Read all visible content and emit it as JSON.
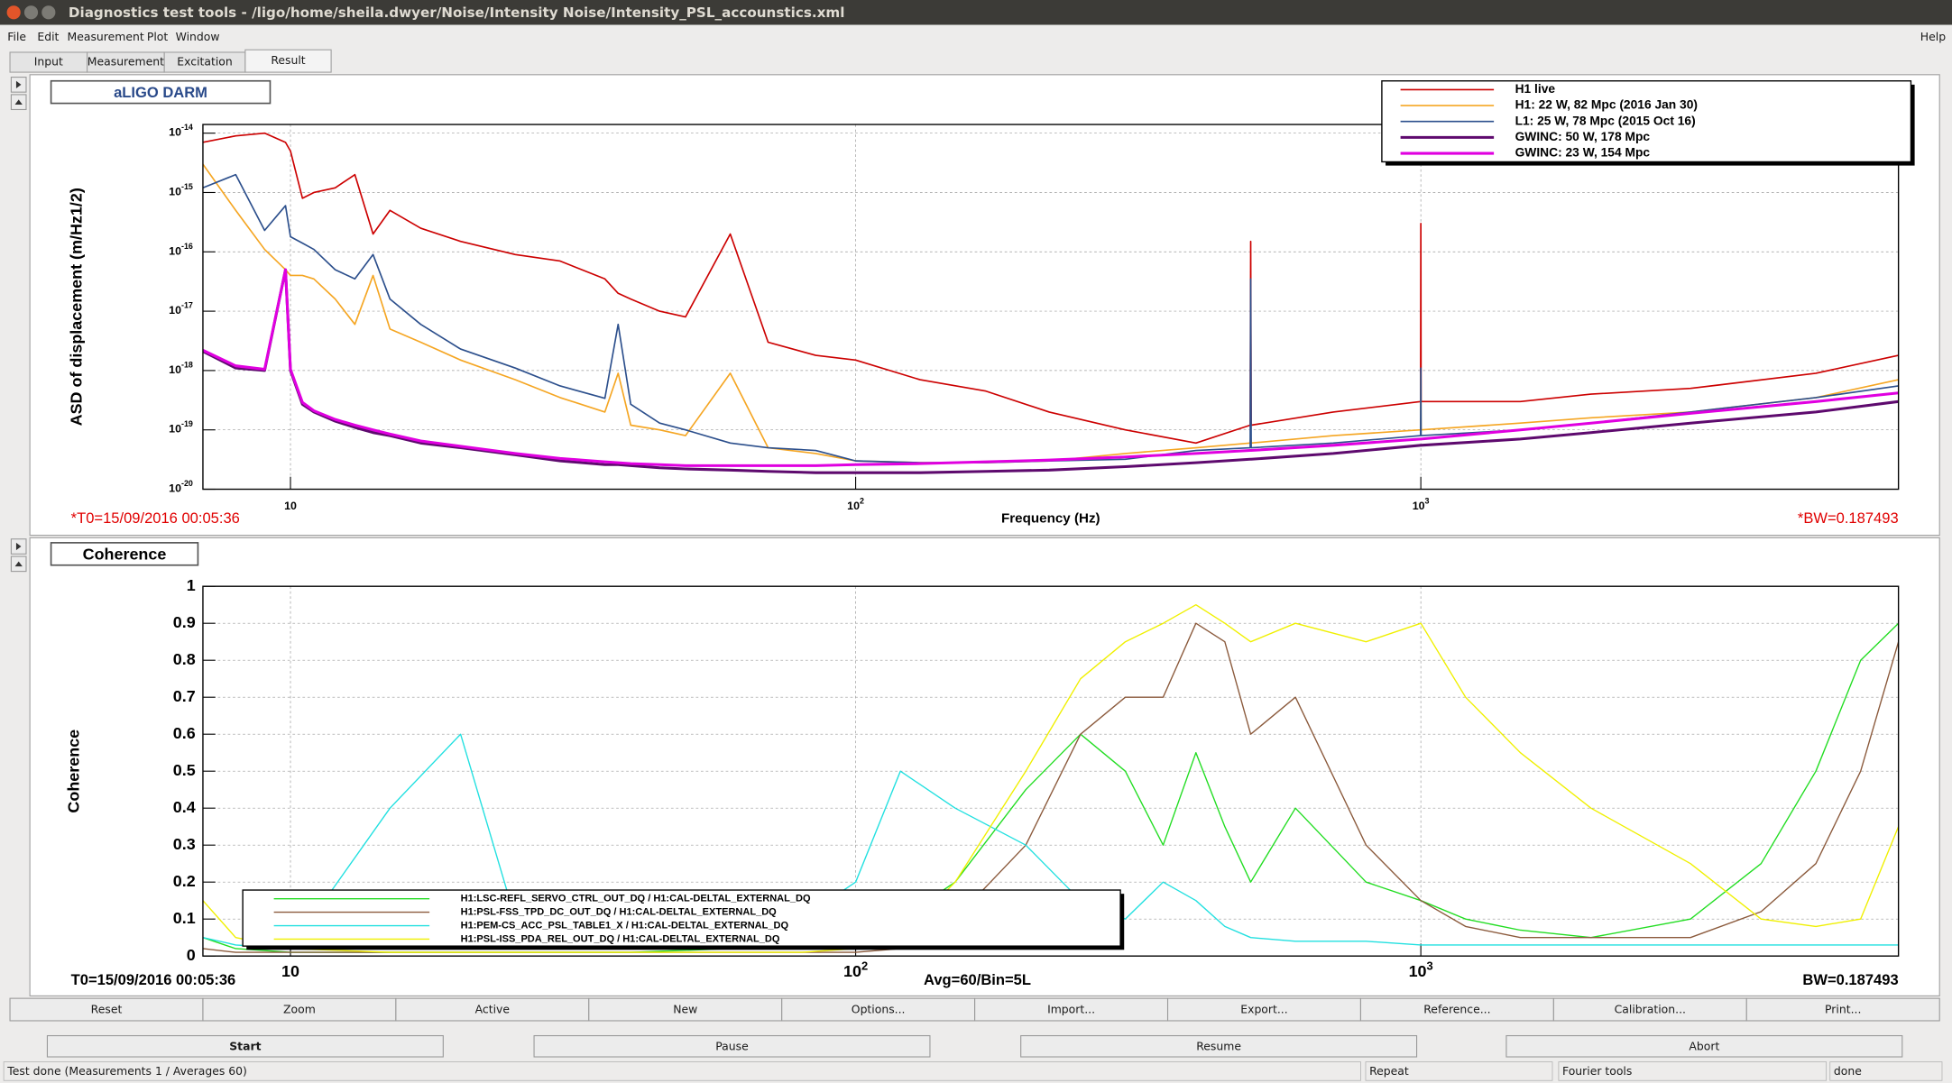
{
  "window": {
    "title": "Diagnostics test tools - /ligo/home/sheila.dwyer/Noise/Intensity Noise/Intensity_PSL_accounstics.xml",
    "menu": [
      "File",
      "Edit",
      "Measurement",
      "Plot",
      "Window"
    ],
    "help": "Help",
    "tabs": [
      "Input",
      "Measurement",
      "Excitation",
      "Result"
    ]
  },
  "chart_data": [
    {
      "type": "line",
      "title": "aLIGO DARM",
      "xlabel": "Frequency (Hz)",
      "ylabel": "ASD of displacement (m/Hz1/2)",
      "log_x": true,
      "log_y": true,
      "grid": true,
      "legend": "upper right",
      "annotations": [
        "*T0=15/09/2016 00:05:36",
        "*BW=0.187493"
      ],
      "xlim": [
        7,
        7000
      ],
      "ylim": [
        1e-20,
        1.4e-14
      ],
      "xticks": [
        10,
        {
          "value": 100,
          "label": "102"
        },
        {
          "value": 1000,
          "label": "103"
        }
      ],
      "yticks": [
        {
          "value": 1e-20,
          "label": "10-20"
        },
        {
          "value": 1e-19,
          "label": "10-19"
        },
        {
          "value": 1e-18,
          "label": "10-18"
        },
        {
          "value": 1e-17,
          "label": "10-17"
        },
        {
          "value": 1e-16,
          "label": "10-16"
        },
        {
          "value": 1e-15,
          "label": "10-15"
        },
        {
          "value": 1e-14,
          "label": "10-14"
        }
      ],
      "x": [
        7,
        8,
        9,
        9.8,
        10,
        10.5,
        11,
        12,
        13,
        14,
        15,
        17,
        20,
        25,
        30,
        36,
        38,
        40,
        45,
        50,
        60,
        70,
        85,
        100,
        130,
        170,
        220,
        300,
        400,
        499,
        500,
        501,
        700,
        999,
        1000,
        1001,
        1500,
        2000,
        3000,
        5000,
        7000
      ],
      "series": [
        {
          "name": "H1 live",
          "color": "#cc0000",
          "width": 1.2,
          "values": [
            7e-15,
            9e-15,
            1e-14,
            7e-15,
            5e-15,
            8e-16,
            1e-15,
            1.2e-15,
            2e-15,
            2e-16,
            5e-16,
            2.5e-16,
            1.5e-16,
            9e-17,
            7e-17,
            3.5e-17,
            2e-17,
            1.6e-17,
            1e-17,
            8e-18,
            2e-16,
            3e-18,
            1.8e-18,
            1.5e-18,
            7e-19,
            4.5e-19,
            2e-19,
            1e-19,
            6e-20,
            1.2e-19,
            1.5e-16,
            1.2e-19,
            2e-19,
            3e-19,
            3e-16,
            3e-19,
            3e-19,
            4e-19,
            5e-19,
            9e-19,
            1.8e-18
          ]
        },
        {
          "name": "H1: 22 W, 82 Mpc (2016 Jan 30)",
          "color": "#f5a623",
          "width": 1.2,
          "values": [
            3e-15,
            5e-16,
            1.1e-16,
            5e-17,
            4e-17,
            4e-17,
            3.5e-17,
            1.6e-17,
            6e-18,
            4e-17,
            5e-18,
            3e-18,
            1.5e-18,
            7e-19,
            3.5e-19,
            2e-19,
            9e-19,
            1.2e-19,
            1e-19,
            8e-20,
            9e-19,
            5e-20,
            4e-20,
            3e-20,
            2.8e-20,
            2.8e-20,
            3e-20,
            4e-20,
            5e-20,
            6e-20,
            8e-20,
            6e-20,
            8e-20,
            1e-19,
            9e-19,
            1e-19,
            1.3e-19,
            1.6e-19,
            2e-19,
            3.5e-19,
            7e-19
          ]
        },
        {
          "name": "L1: 25 W, 78 Mpc (2015 Oct 16)",
          "color": "#2c4f8c",
          "width": 1.2,
          "values": [
            1.2e-15,
            2e-15,
            2.3e-16,
            6e-16,
            1.8e-16,
            1.4e-16,
            1.1e-16,
            5e-17,
            3.5e-17,
            9e-17,
            1.6e-17,
            6e-18,
            2.3e-18,
            1.1e-18,
            5.5e-19,
            3.4e-19,
            6e-18,
            2.7e-19,
            1.3e-19,
            1e-19,
            6e-20,
            5e-20,
            4.5e-20,
            3e-20,
            2.8e-20,
            2.8e-20,
            3e-20,
            3.2e-20,
            4.5e-20,
            5e-20,
            3.5e-17,
            5e-20,
            6e-20,
            8e-20,
            1.1e-18,
            8e-20,
            1e-19,
            1.3e-19,
            2e-19,
            3.5e-19,
            5.5e-19
          ]
        },
        {
          "name": "GWINC: 50 W, 178 Mpc",
          "color": "#5e0a6e",
          "width": 2.2,
          "values": [
            2.1e-18,
            1.1e-18,
            1e-18,
            5e-17,
            1e-18,
            2.7e-19,
            2e-19,
            1.4e-19,
            1.1e-19,
            9e-20,
            8e-20,
            6e-20,
            5e-20,
            3.8e-20,
            3e-20,
            2.6e-20,
            2.6e-20,
            2.5e-20,
            2.3e-20,
            2.2e-20,
            2.1e-20,
            2e-20,
            1.9e-20,
            1.9e-20,
            1.9e-20,
            2e-20,
            2.1e-20,
            2.4e-20,
            2.8e-20,
            3.2e-20,
            3.2e-20,
            3.2e-20,
            4e-20,
            5.5e-20,
            5.5e-20,
            5.5e-20,
            7e-20,
            9e-20,
            1.3e-19,
            2e-19,
            3e-19
          ]
        },
        {
          "name": "GWINC: 23 W, 154 Mpc",
          "color": "#e000e0",
          "width": 2.2,
          "values": [
            2.2e-18,
            1.2e-18,
            1.05e-18,
            5e-17,
            1.05e-18,
            2.9e-19,
            2.1e-19,
            1.5e-19,
            1.2e-19,
            1e-19,
            8.5e-20,
            6.5e-20,
            5.3e-20,
            4e-20,
            3.3e-20,
            2.9e-20,
            2.8e-20,
            2.7e-20,
            2.6e-20,
            2.5e-20,
            2.5e-20,
            2.5e-20,
            2.5e-20,
            2.6e-20,
            2.7e-20,
            2.9e-20,
            3.1e-20,
            3.5e-20,
            4e-20,
            4.5e-20,
            4.5e-20,
            4.5e-20,
            5.5e-20,
            7e-20,
            7e-20,
            7e-20,
            1e-19,
            1.3e-19,
            1.9e-19,
            3e-19,
            4.2e-19
          ]
        }
      ]
    },
    {
      "type": "line",
      "title": "Coherence",
      "ylabel": "Coherence",
      "log_x": true,
      "log_y": false,
      "grid": true,
      "legend": "lower left",
      "annotations": [
        "T0=15/09/2016 00:05:36",
        "Avg=60/Bin=5L",
        "BW=0.187493"
      ],
      "xlim": [
        7,
        7000
      ],
      "ylim": [
        0,
        1
      ],
      "xticks": [
        10,
        {
          "value": 100,
          "label": "102"
        },
        {
          "value": 1000,
          "label": "103"
        }
      ],
      "yticks": [
        0,
        0.1,
        0.2,
        0.3,
        0.4,
        0.5,
        0.6,
        0.7,
        0.8,
        0.9,
        1
      ],
      "x": [
        7,
        8,
        10,
        15,
        20,
        25,
        30,
        40,
        60,
        80,
        100,
        120,
        150,
        200,
        250,
        300,
        350,
        400,
        450,
        500,
        600,
        800,
        1000,
        1200,
        1500,
        2000,
        3000,
        4000,
        5000,
        6000,
        7000
      ],
      "series": [
        {
          "name": "H1:LSC-REFL_SERVO_CTRL_OUT_DQ / H1:CAL-DELTAL_EXTERNAL_DQ",
          "color": "#22dd22",
          "width": 1,
          "values": [
            0.05,
            0.02,
            0.01,
            0.01,
            0.01,
            0.01,
            0.01,
            0.01,
            0.02,
            0.03,
            0.05,
            0.1,
            0.2,
            0.45,
            0.6,
            0.5,
            0.3,
            0.55,
            0.35,
            0.2,
            0.4,
            0.2,
            0.15,
            0.1,
            0.07,
            0.05,
            0.1,
            0.25,
            0.5,
            0.8,
            0.9
          ]
        },
        {
          "name": "H1:PSL-FSS_TPD_DC_OUT_DQ / H1:CAL-DELTAL_EXTERNAL_DQ",
          "color": "#8b5a3c",
          "width": 1,
          "values": [
            0.02,
            0.01,
            0.01,
            0.01,
            0.01,
            0.01,
            0.01,
            0.01,
            0.01,
            0.01,
            0.01,
            0.02,
            0.1,
            0.3,
            0.6,
            0.7,
            0.7,
            0.9,
            0.85,
            0.6,
            0.7,
            0.3,
            0.15,
            0.08,
            0.05,
            0.05,
            0.05,
            0.12,
            0.25,
            0.5,
            0.85
          ]
        },
        {
          "name": "H1:PEM-CS_ACC_PSL_TABLE1_X / H1:CAL-DELTAL_EXTERNAL_DQ",
          "color": "#22e0e0",
          "width": 1,
          "values": [
            0.05,
            0.03,
            0.02,
            0.4,
            0.6,
            0.1,
            0.05,
            0.03,
            0.03,
            0.1,
            0.2,
            0.5,
            0.4,
            0.3,
            0.15,
            0.1,
            0.2,
            0.15,
            0.08,
            0.05,
            0.04,
            0.04,
            0.03,
            0.03,
            0.03,
            0.03,
            0.03,
            0.03,
            0.03,
            0.03,
            0.03
          ]
        },
        {
          "name": "H1:PSL-ISS_PDA_REL_OUT_DQ / H1:CAL-DELTAL_EXTERNAL_DQ",
          "color": "#f0f000",
          "width": 1,
          "values": [
            0.15,
            0.05,
            0.02,
            0.01,
            0.01,
            0.01,
            0.01,
            0.01,
            0.01,
            0.01,
            0.02,
            0.05,
            0.2,
            0.5,
            0.75,
            0.85,
            0.9,
            0.95,
            0.9,
            0.85,
            0.9,
            0.85,
            0.9,
            0.7,
            0.55,
            0.4,
            0.25,
            0.1,
            0.08,
            0.1,
            0.35
          ]
        }
      ]
    }
  ],
  "buttons": [
    "Reset",
    "Zoom",
    "Active",
    "New",
    "Options...",
    "Import...",
    "Export...",
    "Reference...",
    "Calibration...",
    "Print..."
  ],
  "controls": [
    "Start",
    "Pause",
    "Resume",
    "Abort"
  ],
  "status": [
    "Test done (Measurements 1 / Averages 60)",
    "Repeat",
    "Fourier tools",
    "done"
  ]
}
